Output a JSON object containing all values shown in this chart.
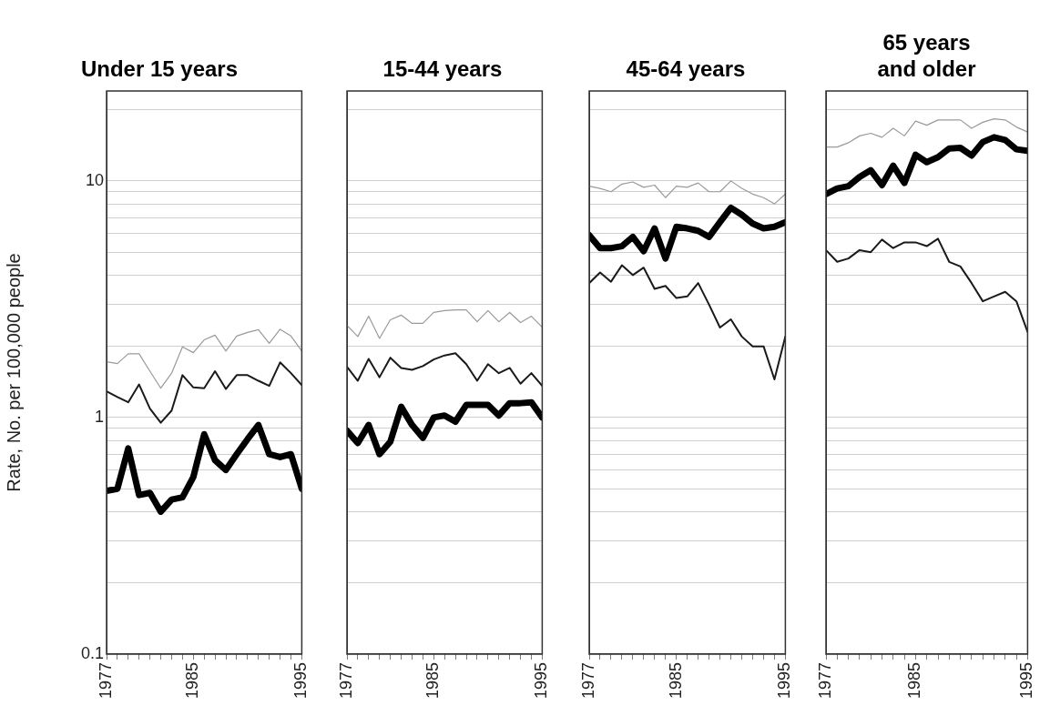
{
  "chart_data": [
    {
      "type": "line",
      "title": "Under 15 years",
      "ylabel": "Rate, No. per 100,000 people",
      "log": "y",
      "grid": "y",
      "x": [
        1977,
        1978,
        1979,
        1980,
        1981,
        1982,
        1983,
        1984,
        1985,
        1986,
        1987,
        1988,
        1989,
        1990,
        1991,
        1992,
        1993,
        1994,
        1995
      ],
      "xlim": [
        1977,
        1995
      ],
      "xticks": [
        1977,
        {
          "value": 1978,
          "label": null
        },
        {
          "value": 1979,
          "label": null
        },
        {
          "value": 1980,
          "label": null
        },
        {
          "value": 1981,
          "label": null
        },
        {
          "value": 1982,
          "label": null
        },
        {
          "value": 1983,
          "label": null
        },
        {
          "value": 1984,
          "label": null
        },
        1985,
        {
          "value": 1986,
          "label": null
        },
        {
          "value": 1987,
          "label": null
        },
        {
          "value": 1988,
          "label": null
        },
        {
          "value": 1989,
          "label": null
        },
        {
          "value": 1990,
          "label": null
        },
        {
          "value": 1991,
          "label": null
        },
        {
          "value": 1992,
          "label": null
        },
        {
          "value": 1993,
          "label": null
        },
        {
          "value": 1994,
          "label": null
        },
        1995
      ],
      "ylim": [
        0.1,
        24
      ],
      "yticks": [
        0.1,
        {
          "value": 0.2,
          "label": null
        },
        {
          "value": 0.3,
          "label": null
        },
        {
          "value": 0.4,
          "label": null
        },
        {
          "value": 0.5,
          "label": null
        },
        {
          "value": 0.6,
          "label": null
        },
        {
          "value": 0.7,
          "label": null
        },
        {
          "value": 0.8,
          "label": null
        },
        {
          "value": 0.9,
          "label": null
        },
        1,
        {
          "value": 2,
          "label": null
        },
        {
          "value": 3,
          "label": null
        },
        {
          "value": 4,
          "label": null
        },
        {
          "value": 5,
          "label": null
        },
        {
          "value": 6,
          "label": null
        },
        {
          "value": 7,
          "label": null
        },
        {
          "value": 8,
          "label": null
        },
        {
          "value": 9,
          "label": null
        },
        10,
        {
          "value": 20,
          "label": null
        }
      ],
      "series": [
        {
          "color": "#000000",
          "values": [
            0.49,
            0.5,
            0.74,
            0.47,
            0.48,
            0.4,
            0.45,
            0.46,
            0.56,
            0.85,
            0.66,
            0.6,
            0.7,
            0.81,
            0.93,
            0.7,
            0.68,
            0.7,
            0.5
          ]
        },
        {
          "color": "#1a1a1a",
          "values": [
            1.29,
            1.22,
            1.16,
            1.38,
            1.09,
            0.95,
            1.07,
            1.51,
            1.34,
            1.33,
            1.57,
            1.32,
            1.51,
            1.51,
            1.43,
            1.36,
            1.71,
            1.54,
            1.37
          ]
        },
        {
          "color": "#9a9a9a",
          "values": [
            1.72,
            1.69,
            1.86,
            1.86,
            1.57,
            1.33,
            1.54,
            1.99,
            1.88,
            2.13,
            2.23,
            1.91,
            2.21,
            2.29,
            2.35,
            2.06,
            2.36,
            2.21,
            1.91
          ]
        }
      ]
    },
    {
      "type": "line",
      "title": "15-44 years",
      "log": "y",
      "grid": "y",
      "tick_labels": "x",
      "x": [
        1977,
        1978,
        1979,
        1980,
        1981,
        1982,
        1983,
        1984,
        1985,
        1986,
        1987,
        1988,
        1989,
        1990,
        1991,
        1992,
        1993,
        1994,
        1995
      ],
      "xlim": [
        1977,
        1995
      ],
      "xticks": [
        1977,
        {
          "value": 1978,
          "label": null
        },
        {
          "value": 1979,
          "label": null
        },
        {
          "value": 1980,
          "label": null
        },
        {
          "value": 1981,
          "label": null
        },
        {
          "value": 1982,
          "label": null
        },
        {
          "value": 1983,
          "label": null
        },
        {
          "value": 1984,
          "label": null
        },
        1985,
        {
          "value": 1986,
          "label": null
        },
        {
          "value": 1987,
          "label": null
        },
        {
          "value": 1988,
          "label": null
        },
        {
          "value": 1989,
          "label": null
        },
        {
          "value": 1990,
          "label": null
        },
        {
          "value": 1991,
          "label": null
        },
        {
          "value": 1992,
          "label": null
        },
        {
          "value": 1993,
          "label": null
        },
        {
          "value": 1994,
          "label": null
        },
        1995
      ],
      "ylim": [
        0.1,
        24
      ],
      "yticks": [
        0.1,
        {
          "value": 0.2,
          "label": null
        },
        {
          "value": 0.3,
          "label": null
        },
        {
          "value": 0.4,
          "label": null
        },
        {
          "value": 0.5,
          "label": null
        },
        {
          "value": 0.6,
          "label": null
        },
        {
          "value": 0.7,
          "label": null
        },
        {
          "value": 0.8,
          "label": null
        },
        {
          "value": 0.9,
          "label": null
        },
        1,
        {
          "value": 2,
          "label": null
        },
        {
          "value": 3,
          "label": null
        },
        {
          "value": 4,
          "label": null
        },
        {
          "value": 5,
          "label": null
        },
        {
          "value": 6,
          "label": null
        },
        {
          "value": 7,
          "label": null
        },
        {
          "value": 8,
          "label": null
        },
        {
          "value": 9,
          "label": null
        },
        10,
        {
          "value": 20,
          "label": null
        }
      ],
      "series": [
        {
          "color": "#000000",
          "values": [
            0.88,
            0.78,
            0.93,
            0.7,
            0.79,
            1.11,
            0.93,
            0.82,
            1.0,
            1.02,
            0.96,
            1.13,
            1.13,
            1.13,
            1.02,
            1.15,
            1.15,
            1.16,
            1.0
          ]
        },
        {
          "color": "#1a1a1a",
          "values": [
            1.64,
            1.43,
            1.77,
            1.48,
            1.79,
            1.62,
            1.59,
            1.65,
            1.76,
            1.83,
            1.87,
            1.68,
            1.43,
            1.68,
            1.54,
            1.62,
            1.39,
            1.54,
            1.36
          ]
        },
        {
          "color": "#9a9a9a",
          "values": [
            2.45,
            2.2,
            2.68,
            2.16,
            2.59,
            2.71,
            2.5,
            2.5,
            2.78,
            2.83,
            2.85,
            2.85,
            2.54,
            2.83,
            2.54,
            2.78,
            2.52,
            2.68,
            2.41
          ]
        }
      ]
    },
    {
      "type": "line",
      "title": "45-64 years",
      "log": "y",
      "grid": "y",
      "tick_labels": "x",
      "x": [
        1977,
        1978,
        1979,
        1980,
        1981,
        1982,
        1983,
        1984,
        1985,
        1986,
        1987,
        1988,
        1989,
        1990,
        1991,
        1992,
        1993,
        1994,
        1995
      ],
      "xlim": [
        1977,
        1995
      ],
      "xticks": [
        1977,
        {
          "value": 1978,
          "label": null
        },
        {
          "value": 1979,
          "label": null
        },
        {
          "value": 1980,
          "label": null
        },
        {
          "value": 1981,
          "label": null
        },
        {
          "value": 1982,
          "label": null
        },
        {
          "value": 1983,
          "label": null
        },
        {
          "value": 1984,
          "label": null
        },
        1985,
        {
          "value": 1986,
          "label": null
        },
        {
          "value": 1987,
          "label": null
        },
        {
          "value": 1988,
          "label": null
        },
        {
          "value": 1989,
          "label": null
        },
        {
          "value": 1990,
          "label": null
        },
        {
          "value": 1991,
          "label": null
        },
        {
          "value": 1992,
          "label": null
        },
        {
          "value": 1993,
          "label": null
        },
        {
          "value": 1994,
          "label": null
        },
        1995
      ],
      "ylim": [
        0.1,
        24
      ],
      "yticks": [
        0.1,
        {
          "value": 0.2,
          "label": null
        },
        {
          "value": 0.3,
          "label": null
        },
        {
          "value": 0.4,
          "label": null
        },
        {
          "value": 0.5,
          "label": null
        },
        {
          "value": 0.6,
          "label": null
        },
        {
          "value": 0.7,
          "label": null
        },
        {
          "value": 0.8,
          "label": null
        },
        {
          "value": 0.9,
          "label": null
        },
        1,
        {
          "value": 2,
          "label": null
        },
        {
          "value": 3,
          "label": null
        },
        {
          "value": 4,
          "label": null
        },
        {
          "value": 5,
          "label": null
        },
        {
          "value": 6,
          "label": null
        },
        {
          "value": 7,
          "label": null
        },
        {
          "value": 8,
          "label": null
        },
        {
          "value": 9,
          "label": null
        },
        10,
        {
          "value": 20,
          "label": null
        }
      ],
      "series": [
        {
          "color": "#000000",
          "values": [
            5.9,
            5.2,
            5.2,
            5.3,
            5.8,
            5.05,
            6.3,
            4.7,
            6.4,
            6.3,
            6.15,
            5.8,
            6.7,
            7.7,
            7.2,
            6.6,
            6.3,
            6.4,
            6.7
          ]
        },
        {
          "color": "#1a1a1a",
          "values": [
            3.7,
            4.1,
            3.75,
            4.4,
            4.0,
            4.3,
            3.5,
            3.6,
            3.2,
            3.25,
            3.7,
            3.0,
            2.4,
            2.6,
            2.2,
            2.0,
            2.0,
            1.45,
            2.2
          ]
        },
        {
          "color": "#9a9a9a",
          "values": [
            9.5,
            9.3,
            9.0,
            9.7,
            9.9,
            9.4,
            9.6,
            8.5,
            9.5,
            9.4,
            9.8,
            9.0,
            9.0,
            10.0,
            9.3,
            8.8,
            8.5,
            8.0,
            8.8
          ]
        }
      ]
    },
    {
      "type": "line",
      "title": "65 years\nand older",
      "log": "y",
      "grid": "y",
      "tick_labels": "x",
      "x": [
        1977,
        1978,
        1979,
        1980,
        1981,
        1982,
        1983,
        1984,
        1985,
        1986,
        1987,
        1988,
        1989,
        1990,
        1991,
        1992,
        1993,
        1994,
        1995
      ],
      "xlim": [
        1977,
        1995
      ],
      "xticks": [
        1977,
        {
          "value": 1978,
          "label": null
        },
        {
          "value": 1979,
          "label": null
        },
        {
          "value": 1980,
          "label": null
        },
        {
          "value": 1981,
          "label": null
        },
        {
          "value": 1982,
          "label": null
        },
        {
          "value": 1983,
          "label": null
        },
        {
          "value": 1984,
          "label": null
        },
        1985,
        {
          "value": 1986,
          "label": null
        },
        {
          "value": 1987,
          "label": null
        },
        {
          "value": 1988,
          "label": null
        },
        {
          "value": 1989,
          "label": null
        },
        {
          "value": 1990,
          "label": null
        },
        {
          "value": 1991,
          "label": null
        },
        {
          "value": 1992,
          "label": null
        },
        {
          "value": 1993,
          "label": null
        },
        {
          "value": 1994,
          "label": null
        },
        1995
      ],
      "ylim": [
        0.1,
        24
      ],
      "yticks": [
        0.1,
        {
          "value": 0.2,
          "label": null
        },
        {
          "value": 0.3,
          "label": null
        },
        {
          "value": 0.4,
          "label": null
        },
        {
          "value": 0.5,
          "label": null
        },
        {
          "value": 0.6,
          "label": null
        },
        {
          "value": 0.7,
          "label": null
        },
        {
          "value": 0.8,
          "label": null
        },
        {
          "value": 0.9,
          "label": null
        },
        1,
        {
          "value": 2,
          "label": null
        },
        {
          "value": 3,
          "label": null
        },
        {
          "value": 4,
          "label": null
        },
        {
          "value": 5,
          "label": null
        },
        {
          "value": 6,
          "label": null
        },
        {
          "value": 7,
          "label": null
        },
        {
          "value": 8,
          "label": null
        },
        {
          "value": 9,
          "label": null
        },
        10,
        {
          "value": 20,
          "label": null
        }
      ],
      "series": [
        {
          "color": "#000000",
          "values": [
            8.8,
            9.3,
            9.5,
            10.4,
            11.1,
            9.6,
            11.6,
            9.8,
            12.9,
            12.0,
            12.6,
            13.7,
            13.8,
            12.8,
            14.6,
            15.3,
            14.9,
            13.6,
            13.4
          ]
        },
        {
          "color": "#1a1a1a",
          "values": [
            5.1,
            4.55,
            4.7,
            5.1,
            5.0,
            5.65,
            5.2,
            5.5,
            5.5,
            5.3,
            5.7,
            4.55,
            4.35,
            3.7,
            3.1,
            3.25,
            3.4,
            3.1,
            2.3
          ]
        },
        {
          "color": "#9a9a9a",
          "values": [
            13.9,
            13.9,
            14.5,
            15.5,
            15.9,
            15.3,
            16.7,
            15.5,
            17.9,
            17.2,
            18.1,
            18.1,
            18.1,
            16.7,
            17.7,
            18.3,
            18.1,
            16.9,
            16.1
          ]
        }
      ]
    }
  ]
}
